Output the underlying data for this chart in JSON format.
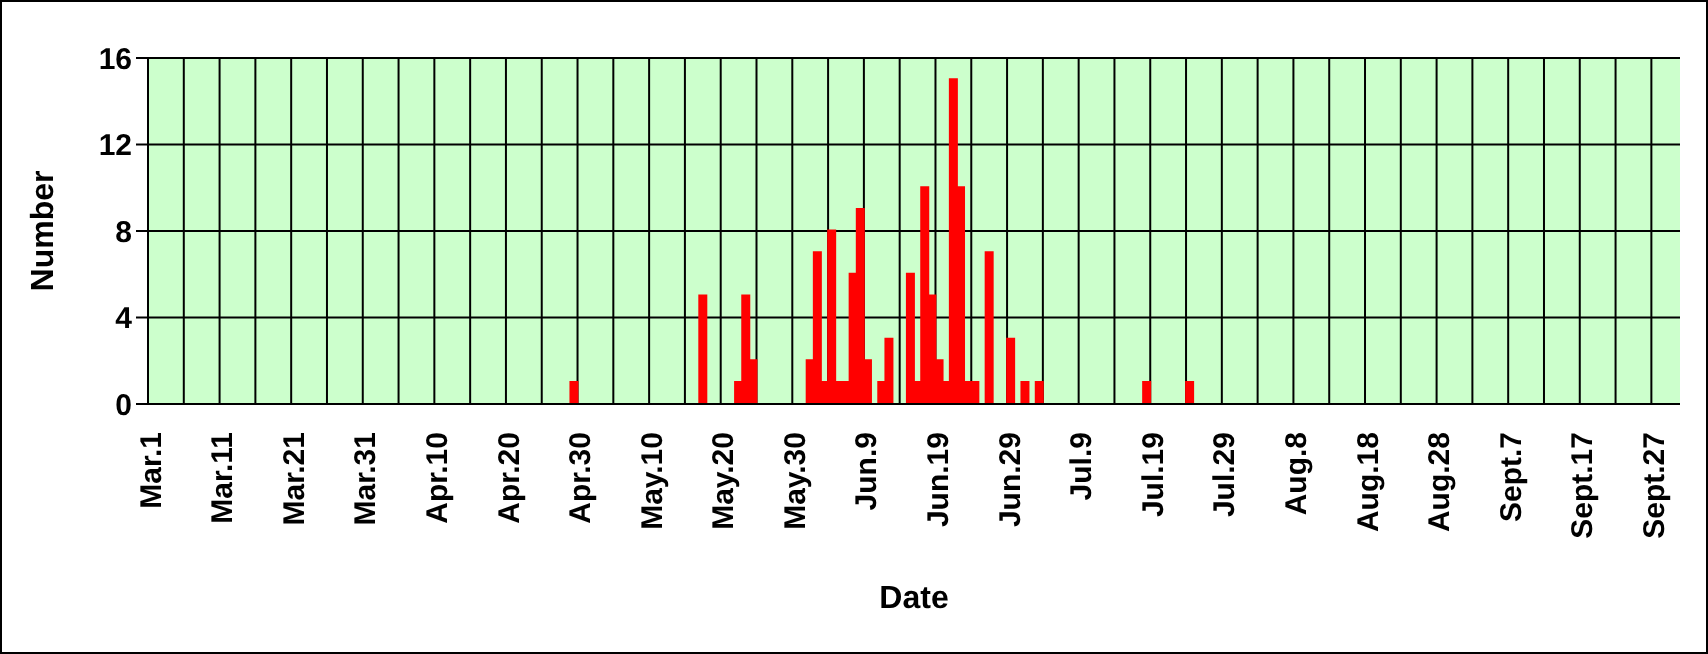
{
  "chart_data": {
    "type": "bar",
    "xlabel": "Date",
    "ylabel": "Number",
    "color": "#ff0000",
    "ylim": [
      0,
      16
    ],
    "yticks": [
      0,
      4,
      8,
      12,
      16
    ],
    "grid": true,
    "categories": [
      "Mar.1",
      null,
      null,
      null,
      null,
      null,
      null,
      null,
      null,
      null,
      "Mar.11",
      null,
      null,
      null,
      null,
      null,
      null,
      null,
      null,
      null,
      "Mar.21",
      null,
      null,
      null,
      null,
      null,
      null,
      null,
      null,
      null,
      "Mar.31",
      null,
      null,
      null,
      null,
      null,
      null,
      null,
      null,
      null,
      "Apr.10",
      null,
      null,
      null,
      null,
      null,
      null,
      null,
      null,
      null,
      "Apr.20",
      null,
      null,
      null,
      null,
      null,
      null,
      null,
      null,
      null,
      "Apr.30",
      null,
      null,
      null,
      null,
      null,
      null,
      null,
      null,
      null,
      "May.10",
      null,
      null,
      null,
      null,
      null,
      null,
      null,
      null,
      null,
      "May.20",
      null,
      null,
      null,
      null,
      null,
      null,
      null,
      null,
      null,
      "May.30",
      null,
      null,
      null,
      null,
      null,
      null,
      null,
      null,
      null,
      "Jun.9",
      null,
      null,
      null,
      null,
      null,
      null,
      null,
      null,
      null,
      "Jun.19",
      null,
      null,
      null,
      null,
      null,
      null,
      null,
      null,
      null,
      "Jun.29",
      null,
      null,
      null,
      null,
      null,
      null,
      null,
      null,
      null,
      "Jul.9",
      null,
      null,
      null,
      null,
      null,
      null,
      null,
      null,
      null,
      "Jul.19",
      null,
      null,
      null,
      null,
      null,
      null,
      null,
      null,
      null,
      "Jul.29",
      null,
      null,
      null,
      null,
      null,
      null,
      null,
      null,
      null,
      "Aug.8",
      null,
      null,
      null,
      null,
      null,
      null,
      null,
      null,
      null,
      "Aug.18",
      null,
      null,
      null,
      null,
      null,
      null,
      null,
      null,
      null,
      "Aug.28",
      null,
      null,
      null,
      null,
      null,
      null,
      null,
      null,
      null,
      "Sept.7",
      null,
      null,
      null,
      null,
      null,
      null,
      null,
      null,
      null,
      "Sept.17",
      null,
      null,
      null,
      null,
      null,
      null,
      null,
      null,
      null,
      "Sept.27",
      null,
      null,
      null
    ],
    "values": [
      0,
      0,
      0,
      0,
      0,
      0,
      0,
      0,
      0,
      0,
      0,
      0,
      0,
      0,
      0,
      0,
      0,
      0,
      0,
      0,
      0,
      0,
      0,
      0,
      0,
      0,
      0,
      0,
      0,
      0,
      0,
      0,
      0,
      0,
      0,
      0,
      0,
      0,
      0,
      0,
      0,
      0,
      0,
      0,
      0,
      0,
      0,
      0,
      0,
      0,
      0,
      0,
      0,
      0,
      0,
      0,
      0,
      0,
      0,
      1,
      0,
      0,
      0,
      0,
      0,
      0,
      0,
      0,
      0,
      0,
      0,
      0,
      0,
      0,
      0,
      0,
      0,
      5,
      0,
      0,
      0,
      0,
      1,
      5,
      2,
      0,
      0,
      0,
      0,
      0,
      0,
      0,
      2,
      7,
      1,
      8,
      1,
      1,
      6,
      9,
      2,
      0,
      1,
      3,
      0,
      0,
      6,
      1,
      10,
      5,
      2,
      1,
      15,
      10,
      1,
      1,
      0,
      7,
      0,
      0,
      3,
      0,
      1,
      0,
      1,
      0,
      0,
      0,
      0,
      0,
      0,
      0,
      0,
      0,
      0,
      0,
      0,
      0,
      0,
      1,
      0,
      0,
      0,
      0,
      0,
      1,
      0,
      0,
      0,
      0,
      0,
      0,
      0,
      0,
      0,
      0,
      0,
      0,
      0,
      0,
      0,
      0,
      0,
      0,
      0,
      0,
      0,
      0,
      0,
      0,
      0,
      0,
      0,
      0,
      0,
      0,
      0,
      0,
      0,
      0,
      0,
      0,
      0,
      0,
      0,
      0,
      0,
      0,
      0,
      0,
      0,
      0,
      0,
      0,
      0,
      0,
      0,
      0,
      0,
      0,
      0,
      0,
      0,
      0,
      0,
      0,
      0,
      0,
      0,
      0,
      0,
      0,
      0,
      0
    ]
  }
}
